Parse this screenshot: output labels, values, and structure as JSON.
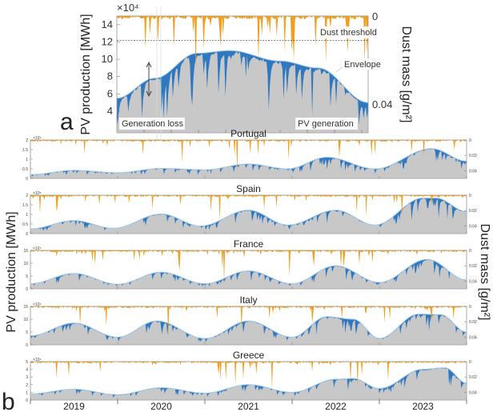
{
  "labels": {
    "panel_a": "a",
    "panel_b": "b"
  },
  "chart_data": [
    {
      "type": "area",
      "panel": "a",
      "ylabel": "PV production [MWh]",
      "ylabel_right": "Dust mass [g/m²]",
      "y_exponent": "×10⁴",
      "ylim": [
        1.5,
        15
      ],
      "yticks": [
        4,
        6,
        8,
        10,
        12,
        14
      ],
      "ylim_right": [
        0,
        0.05
      ],
      "yticks_right": [
        0,
        0.04
      ],
      "yticks_right_labels": [
        "0",
        "0.04"
      ],
      "dust_threshold": 12.2,
      "annotations": [
        "Dust threshold",
        "Envelope",
        "Generation loss",
        "PV generation"
      ],
      "envelope": [
        [
          0,
          5.5
        ],
        [
          15,
          7.8
        ],
        [
          32,
          10.7
        ],
        [
          45,
          11
        ],
        [
          65,
          9.8
        ],
        [
          80,
          9
        ],
        [
          100,
          5
        ]
      ],
      "colors": {
        "generation": "#c8c8c8",
        "loss": "#2f78c0",
        "dust": "#f0a020",
        "envelope": "#9cc8ec"
      }
    },
    {
      "type": "area",
      "panel": "b",
      "ylabel": "PV production [MWh]",
      "ylabel_right": "Dust mass [g/m²]",
      "xlim": [
        2019,
        2024
      ],
      "xtick_labels": [
        "2019",
        "2020",
        "2021",
        "2022",
        "2023"
      ],
      "ylim_right": [
        0,
        0.05
      ],
      "yticks_right": [
        "0",
        "0.02",
        "0.04"
      ],
      "countries": [
        {
          "title": "Portugal",
          "y_exponent": "×10⁵",
          "ylim": [
            0,
            2
          ],
          "yticks": [
            "0",
            "0.5",
            "1",
            "1.5",
            "2"
          ],
          "envelope": [
            [
              2019.0,
              0.2
            ],
            [
              2019.5,
              0.42
            ],
            [
              2020.0,
              0.3
            ],
            [
              2020.5,
              0.52
            ],
            [
              2021.0,
              0.45
            ],
            [
              2021.5,
              0.75
            ],
            [
              2021.95,
              0.5
            ],
            [
              2022.4,
              1.1
            ],
            [
              2022.95,
              0.5
            ],
            [
              2023.6,
              1.55
            ],
            [
              2024.0,
              0.9
            ]
          ]
        },
        {
          "title": "Spain",
          "y_exponent": "×10⁵",
          "ylim": [
            0,
            2
          ],
          "yticks": [
            "0",
            "0.5",
            "1",
            "1.5",
            "2"
          ],
          "envelope": [
            [
              2019.0,
              0.25
            ],
            [
              2019.5,
              0.68
            ],
            [
              2019.95,
              0.28
            ],
            [
              2020.5,
              1.02
            ],
            [
              2020.95,
              0.4
            ],
            [
              2021.5,
              1.22
            ],
            [
              2021.95,
              0.45
            ],
            [
              2022.5,
              1.22
            ],
            [
              2022.95,
              0.45
            ],
            [
              2023.5,
              1.85
            ],
            [
              2023.65,
              1.85
            ],
            [
              2024.0,
              1.15
            ]
          ]
        },
        {
          "title": "France",
          "y_exponent": "×10⁴",
          "ylim": [
            0,
            15
          ],
          "yticks": [
            "0",
            "5",
            "10",
            "15"
          ],
          "envelope": [
            [
              2019.0,
              2
            ],
            [
              2019.5,
              6
            ],
            [
              2020.0,
              1.8
            ],
            [
              2020.5,
              6.5
            ],
            [
              2021.0,
              2
            ],
            [
              2021.5,
              7
            ],
            [
              2022.0,
              2
            ],
            [
              2022.5,
              9
            ],
            [
              2023.0,
              2.5
            ],
            [
              2023.55,
              11.5
            ],
            [
              2024.0,
              3.5
            ]
          ]
        },
        {
          "title": "Italy",
          "y_exponent": "×10⁴",
          "ylim": [
            0,
            15
          ],
          "yticks": [
            "0",
            "5",
            "10",
            "15"
          ],
          "envelope": [
            [
              2019.0,
              3.5
            ],
            [
              2019.5,
              8.5
            ],
            [
              2020.0,
              3
            ],
            [
              2020.45,
              9.3
            ],
            [
              2021.0,
              2.5
            ],
            [
              2021.5,
              9.3
            ],
            [
              2022.0,
              3
            ],
            [
              2022.4,
              11
            ],
            [
              2022.7,
              10
            ],
            [
              2023.0,
              2.5
            ],
            [
              2023.45,
              12
            ],
            [
              2023.7,
              11.8
            ],
            [
              2024.0,
              5
            ]
          ]
        },
        {
          "title": "Greece",
          "y_exponent": "×10⁴",
          "ylim": [
            0,
            5
          ],
          "yticks": [
            "0",
            "1",
            "2",
            "3",
            "4",
            "5"
          ],
          "envelope": [
            [
              2019.0,
              0.8
            ],
            [
              2019.5,
              1.4
            ],
            [
              2020.0,
              0.7
            ],
            [
              2020.5,
              1.6
            ],
            [
              2021.0,
              0.9
            ],
            [
              2021.5,
              2
            ],
            [
              2022.0,
              1
            ],
            [
              2022.5,
              2.7
            ],
            [
              2022.7,
              2.8
            ],
            [
              2023.0,
              1.5
            ],
            [
              2023.5,
              4
            ],
            [
              2023.75,
              4.2
            ],
            [
              2024.0,
              2.2
            ]
          ]
        }
      ]
    }
  ]
}
